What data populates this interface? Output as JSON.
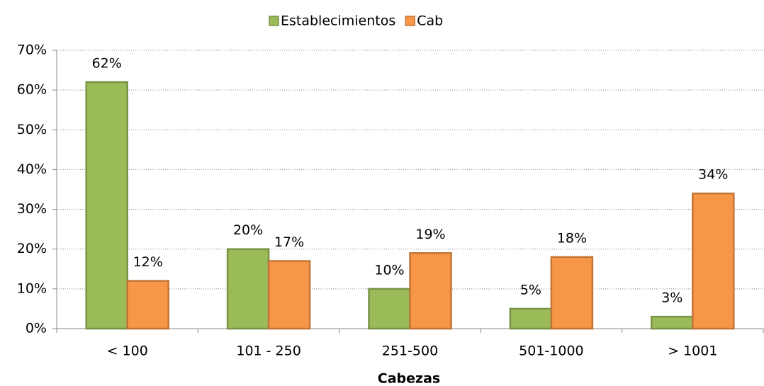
{
  "chart_data": {
    "type": "bar",
    "x_label": "Cabezas",
    "categories": [
      "< 100",
      "101 - 250",
      "251-500",
      "501-1000",
      "> 1001"
    ],
    "series": [
      {
        "name": "Establecimientos",
        "color": "#9bbb59",
        "values": [
          62,
          20,
          10,
          5,
          3
        ],
        "value_labels": [
          "62%",
          "20%",
          "10%",
          "5%",
          "3%"
        ]
      },
      {
        "name": "Cab",
        "color": "#f79646",
        "values": [
          12,
          17,
          19,
          18,
          34
        ],
        "value_labels": [
          "12%",
          "17%",
          "19%",
          "18%",
          "34%"
        ]
      }
    ],
    "ylim": [
      0,
      70
    ],
    "yticks": [
      {
        "value": 0,
        "label": "0%"
      },
      {
        "value": 10,
        "label": "10%"
      },
      {
        "value": 20,
        "label": "20%"
      },
      {
        "value": 30,
        "label": "30%"
      },
      {
        "value": 40,
        "label": "40%"
      },
      {
        "value": 50,
        "label": "50%"
      },
      {
        "value": 60,
        "label": "60%"
      },
      {
        "value": 70,
        "label": "70%"
      }
    ],
    "grid": true,
    "legend": "top"
  }
}
